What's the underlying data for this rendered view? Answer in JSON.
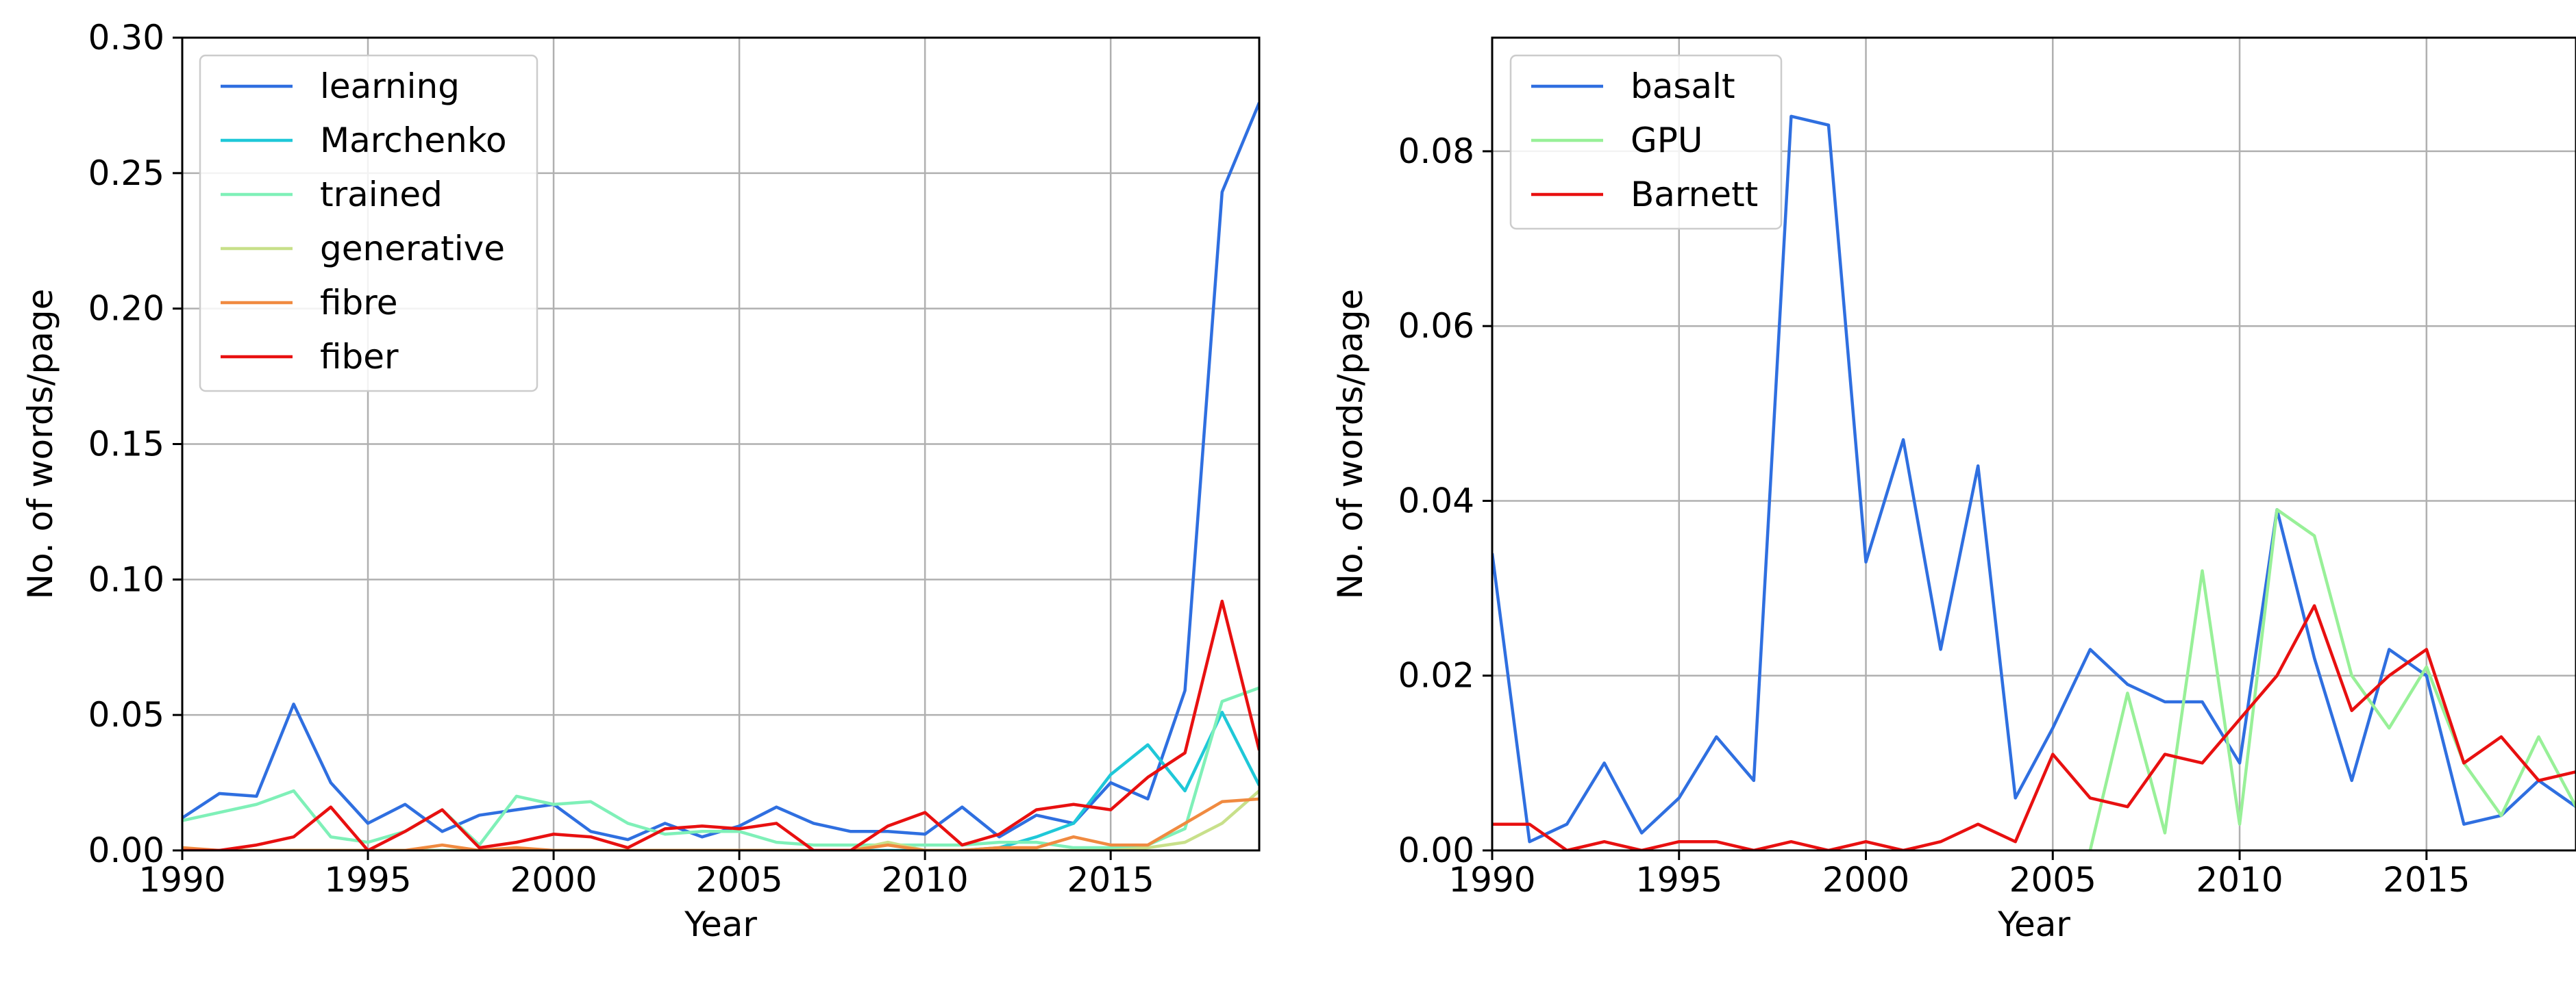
{
  "chart_data": [
    {
      "type": "line",
      "xlabel": "Year",
      "ylabel": "No. of words/page",
      "xlim": [
        1990,
        2019
      ],
      "ylim": [
        0,
        0.3
      ],
      "xticks": [
        "1990",
        "1995",
        "2000",
        "2005",
        "2010",
        "2015"
      ],
      "yticks": [
        "0.00",
        "0.05",
        "0.10",
        "0.15",
        "0.20",
        "0.25",
        "0.30"
      ],
      "grid": true,
      "legend": "top-left",
      "x": [
        1990,
        1991,
        1992,
        1993,
        1994,
        1995,
        1996,
        1997,
        1998,
        1999,
        2000,
        2001,
        2002,
        2003,
        2004,
        2005,
        2006,
        2007,
        2008,
        2009,
        2010,
        2011,
        2012,
        2013,
        2014,
        2015,
        2016,
        2017,
        2018,
        2019
      ],
      "series": [
        {
          "name": "learning",
          "color": "#2f6fe0",
          "values": [
            0.012,
            0.021,
            0.02,
            0.054,
            0.025,
            0.01,
            0.017,
            0.007,
            0.013,
            0.015,
            0.017,
            0.007,
            0.004,
            0.01,
            0.005,
            0.009,
            0.016,
            0.01,
            0.007,
            0.007,
            0.006,
            0.016,
            0.005,
            0.013,
            0.01,
            0.025,
            0.019,
            0.059,
            0.243,
            0.276
          ]
        },
        {
          "name": "Marchenko",
          "color": "#1fc8d8",
          "values": [
            0,
            0,
            0,
            0,
            0,
            0,
            0,
            0,
            0,
            0,
            0,
            0,
            0,
            0,
            0,
            0,
            0,
            0,
            0,
            0,
            0,
            0,
            0.001,
            0.005,
            0.01,
            0.028,
            0.039,
            0.022,
            0.051,
            0.024
          ]
        },
        {
          "name": "trained",
          "color": "#7ff0b8",
          "values": [
            0.011,
            0.014,
            0.017,
            0.022,
            0.005,
            0.003,
            0.007,
            0.015,
            0.002,
            0.02,
            0.017,
            0.018,
            0.01,
            0.006,
            0.007,
            0.007,
            0.003,
            0.002,
            0.002,
            0.002,
            0.002,
            0.002,
            0.003,
            0.003,
            0.001,
            0.001,
            0.002,
            0.008,
            0.055,
            0.06
          ]
        },
        {
          "name": "generative",
          "color": "#c8e08a",
          "values": [
            0,
            0,
            0,
            0,
            0,
            0,
            0,
            0,
            0,
            0,
            0,
            0,
            0,
            0,
            0,
            0,
            0,
            0,
            0,
            0.003,
            0,
            0,
            0,
            0,
            0,
            0,
            0.001,
            0.003,
            0.01,
            0.022
          ]
        },
        {
          "name": "fibre",
          "color": "#f08a40",
          "values": [
            0.001,
            0,
            0,
            0,
            0,
            0,
            0,
            0.002,
            0,
            0.001,
            0,
            0,
            0,
            0,
            0,
            0,
            0,
            0,
            0,
            0.002,
            0,
            0,
            0.001,
            0.001,
            0.005,
            0.002,
            0.002,
            0.01,
            0.018,
            0.019
          ]
        },
        {
          "name": "fiber",
          "color": "#e81010",
          "values": [
            0,
            0,
            0.002,
            0.005,
            0.016,
            0,
            0.007,
            0.015,
            0.001,
            0.003,
            0.006,
            0.005,
            0.001,
            0.008,
            0.009,
            0.008,
            0.01,
            0,
            0,
            0.009,
            0.014,
            0.002,
            0.006,
            0.015,
            0.017,
            0.015,
            0.027,
            0.036,
            0.092,
            0.037
          ]
        }
      ]
    },
    {
      "type": "line",
      "xlabel": "Year",
      "ylabel": "No. of words/page",
      "xlim": [
        1990,
        2019
      ],
      "ylim": [
        0,
        0.093
      ],
      "xticks": [
        "1990",
        "1995",
        "2000",
        "2005",
        "2010",
        "2015"
      ],
      "yticks": [
        "0.00",
        "0.02",
        "0.04",
        "0.06",
        "0.08"
      ],
      "grid": true,
      "legend": "top-left",
      "x": [
        1990,
        1991,
        1992,
        1993,
        1994,
        1995,
        1996,
        1997,
        1998,
        1999,
        2000,
        2001,
        2002,
        2003,
        2004,
        2005,
        2006,
        2007,
        2008,
        2009,
        2010,
        2011,
        2012,
        2013,
        2014,
        2015,
        2016,
        2017,
        2018,
        2019
      ],
      "series": [
        {
          "name": "basalt",
          "color": "#2f6fe0",
          "values": [
            0.034,
            0.001,
            0.003,
            0.01,
            0.002,
            0.006,
            0.013,
            0.008,
            0.084,
            0.083,
            0.033,
            0.047,
            0.023,
            0.044,
            0.006,
            0.014,
            0.023,
            0.019,
            0.017,
            0.017,
            0.01,
            0.039,
            0.022,
            0.008,
            0.023,
            0.02,
            0.003,
            0.004,
            0.008,
            0.005
          ]
        },
        {
          "name": "GPU",
          "color": "#98f098",
          "values": [
            null,
            null,
            null,
            null,
            null,
            null,
            null,
            null,
            null,
            null,
            null,
            null,
            null,
            null,
            null,
            null,
            0,
            0.018,
            0.002,
            0.032,
            0.003,
            0.039,
            0.036,
            0.02,
            0.014,
            0.021,
            0.01,
            0.004,
            0.013,
            0.005
          ]
        },
        {
          "name": "Barnett",
          "color": "#e81010",
          "values": [
            0.003,
            0.003,
            0,
            0.001,
            0,
            0.001,
            0.001,
            0,
            0.001,
            0,
            0.001,
            0,
            0.001,
            0.003,
            0.001,
            0.011,
            0.006,
            0.005,
            0.011,
            0.01,
            0.015,
            0.02,
            0.028,
            0.016,
            0.02,
            0.023,
            0.01,
            0.013,
            0.008,
            0.009
          ]
        }
      ]
    }
  ]
}
